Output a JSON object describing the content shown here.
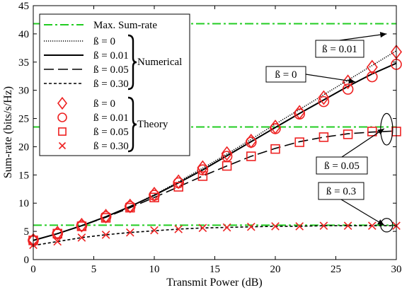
{
  "chart_data": {
    "type": "line",
    "title": "",
    "xlabel": "Transmit Power (dB)",
    "ylabel": "Sum-rate (bits/s/Hz)",
    "xlim": [
      0,
      30
    ],
    "ylim": [
      0,
      45
    ],
    "x_ticks": [
      0,
      5,
      10,
      15,
      20,
      25,
      30
    ],
    "y_ticks": [
      0,
      5,
      10,
      15,
      20,
      25,
      30,
      35,
      40,
      45
    ],
    "grid": false,
    "legend_position": "top-left",
    "max_sum_rate": {
      "name": "Max. Sum-rate",
      "color": "#22cc22",
      "levels": [
        41.8,
        23.5,
        6.1
      ]
    },
    "numerical_series": [
      {
        "name": "ß = 0",
        "style": "dotted",
        "x": [
          0,
          2,
          4,
          6,
          8,
          10,
          12,
          14,
          16,
          18,
          20,
          22,
          24,
          26,
          28,
          30
        ],
        "values": [
          3.4,
          4.6,
          6.0,
          7.6,
          9.4,
          11.5,
          13.8,
          16.2,
          18.7,
          21.3,
          24.0,
          26.6,
          29.2,
          31.8,
          34.4,
          37.0
        ]
      },
      {
        "name": "ß = 0.01",
        "style": "solid",
        "x": [
          0,
          2,
          4,
          6,
          8,
          10,
          12,
          14,
          16,
          18,
          20,
          22,
          24,
          26,
          28,
          30
        ],
        "values": [
          3.4,
          4.6,
          6.0,
          7.6,
          9.4,
          11.4,
          13.6,
          15.9,
          18.4,
          20.9,
          23.4,
          25.9,
          28.3,
          30.7,
          32.9,
          34.8
        ]
      },
      {
        "name": "ß = 0.05",
        "style": "dashed",
        "x": [
          0,
          2,
          4,
          6,
          8,
          10,
          12,
          14,
          16,
          18,
          20,
          22,
          24,
          26,
          28,
          30
        ],
        "values": [
          3.4,
          4.6,
          6.0,
          7.5,
          9.2,
          11.0,
          12.9,
          14.8,
          16.6,
          18.3,
          19.7,
          20.9,
          21.7,
          22.3,
          22.6,
          22.8
        ]
      },
      {
        "name": "ß = 0.30",
        "style": "short-dashed",
        "x": [
          0,
          2,
          4,
          6,
          8,
          10,
          12,
          14,
          16,
          18,
          20,
          22,
          24,
          26,
          28,
          30
        ],
        "values": [
          2.5,
          3.2,
          3.9,
          4.4,
          4.8,
          5.1,
          5.4,
          5.6,
          5.7,
          5.8,
          5.9,
          5.9,
          6.0,
          6.0,
          6.0,
          6.0
        ]
      }
    ],
    "theory_series": [
      {
        "name": "ß = 0",
        "marker": "diamond",
        "x": [
          0,
          2,
          4,
          6,
          8,
          10,
          12,
          14,
          16,
          18,
          20,
          22,
          24,
          26,
          28,
          30
        ],
        "values": [
          3.4,
          4.7,
          6.1,
          7.7,
          9.5,
          11.6,
          13.8,
          16.3,
          18.8,
          21.0,
          23.5,
          26.1,
          28.7,
          31.5,
          34.1,
          36.8
        ]
      },
      {
        "name": "ß = 0.01",
        "marker": "circle",
        "x": [
          0,
          2,
          4,
          6,
          8,
          10,
          12,
          14,
          16,
          18,
          20,
          22,
          24,
          26,
          28,
          30
        ],
        "values": [
          3.4,
          4.6,
          6.0,
          7.6,
          9.4,
          11.4,
          13.6,
          15.9,
          18.3,
          20.8,
          23.2,
          25.8,
          28.0,
          30.2,
          32.4,
          34.6
        ]
      },
      {
        "name": "ß = 0.05",
        "marker": "square",
        "x": [
          0,
          2,
          4,
          6,
          8,
          10,
          12,
          14,
          16,
          18,
          20,
          22,
          24,
          26,
          28,
          30
        ],
        "values": [
          3.4,
          4.6,
          5.9,
          7.4,
          9.2,
          11.0,
          12.9,
          14.8,
          16.6,
          18.3,
          19.6,
          20.8,
          21.7,
          22.2,
          22.7,
          22.7
        ]
      },
      {
        "name": "ß = 0.30",
        "marker": "x",
        "x": [
          0,
          2,
          4,
          6,
          8,
          10,
          12,
          14,
          16,
          18,
          20,
          22,
          24,
          26,
          28,
          30
        ],
        "values": [
          2.6,
          3.2,
          3.9,
          4.4,
          4.8,
          5.2,
          5.4,
          5.6,
          5.7,
          5.8,
          5.9,
          5.9,
          6.0,
          6.0,
          6.0,
          6.0
        ]
      }
    ],
    "legend": {
      "max_label": "Max. Sum-rate",
      "numerical_group": "Numerical",
      "theory_group": "Theory"
    },
    "annotations": [
      {
        "text": "ß = 0.01",
        "target": [
          29.2,
          40.0
        ]
      },
      {
        "text": "ß = 0",
        "target": [
          26.6,
          31.5
        ]
      },
      {
        "text": "ß = 0.05",
        "target": [
          29.0,
          23.2
        ]
      },
      {
        "text": "ß = 0.3",
        "target": [
          29.0,
          6.1
        ]
      }
    ],
    "ellipses": [
      {
        "center": [
          29.2,
          23.1
        ],
        "rx": 0.5,
        "ry": 2.8
      },
      {
        "center": [
          29.2,
          6.1
        ],
        "rx": 0.5,
        "ry": 1.2
      }
    ],
    "colors": {
      "theory": "#ee2222",
      "max": "#22cc22",
      "line": "#000000"
    }
  }
}
